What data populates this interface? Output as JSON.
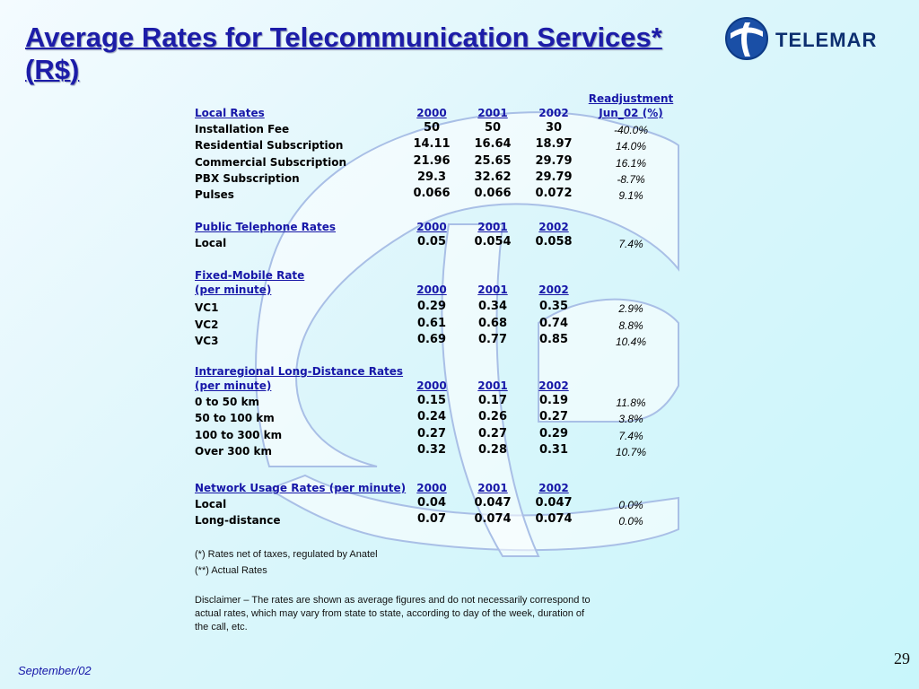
{
  "title": "Average Rates for Telecommunication Services* (R$)",
  "logo": {
    "text": "TELEMAR"
  },
  "readjustment_header": [
    "Readjustment",
    "Jun_02 (%)"
  ],
  "sections": [
    {
      "header": [
        "Local Rates"
      ],
      "years": [
        "2000",
        "2001",
        "2002"
      ],
      "years_underlined": [
        true,
        true,
        false
      ],
      "rows": [
        {
          "label": "Installation Fee",
          "values": [
            "50",
            "50",
            "30"
          ],
          "pct": "-40.0%"
        },
        {
          "label": "Residential Subscription",
          "values": [
            "14.11",
            "16.64",
            "18.97"
          ],
          "pct": "14.0%"
        },
        {
          "label": "Commercial Subscription",
          "values": [
            "21.96",
            "25.65",
            "29.79"
          ],
          "pct": "16.1%"
        },
        {
          "label": "PBX Subscription",
          "values": [
            "29.3",
            "32.62",
            "29.79"
          ],
          "pct": "-8.7%"
        },
        {
          "label": "Pulses",
          "values": [
            "0.066",
            "0.066",
            "0.072"
          ],
          "pct": "9.1%"
        }
      ]
    },
    {
      "header": [
        "Public Telephone Rates"
      ],
      "years": [
        "2000",
        "2001",
        "2002"
      ],
      "years_underlined": [
        true,
        true,
        true
      ],
      "rows": [
        {
          "label": "Local",
          "values": [
            "0.05",
            "0.054",
            "0.058"
          ],
          "pct": "7.4%"
        }
      ]
    },
    {
      "header": [
        "Fixed-Mobile Rate",
        "(per minute)"
      ],
      "years": [
        "2000",
        "2001",
        "2002"
      ],
      "years_underlined": [
        true,
        true,
        true
      ],
      "rows": [
        {
          "label": "VC1",
          "values": [
            "0.29",
            "0.34",
            "0.35"
          ],
          "pct": "2.9%"
        },
        {
          "label": "VC2",
          "values": [
            "0.61",
            "0.68",
            "0.74"
          ],
          "pct": "8.8%"
        },
        {
          "label": "VC3",
          "values": [
            "0.69",
            "0.77",
            "0.85"
          ],
          "pct": "10.4%"
        }
      ]
    },
    {
      "header": [
        "Intraregional Long-Distance Rates",
        "(per minute)"
      ],
      "years": [
        "2000",
        "2001",
        "2002"
      ],
      "years_underlined": [
        true,
        true,
        true
      ],
      "rows": [
        {
          "label": "0 to 50 km",
          "values": [
            "0.15",
            "0.17",
            "0.19"
          ],
          "pct": "11.8%"
        },
        {
          "label": "50 to 100 km",
          "values": [
            "0.24",
            "0.26",
            "0.27"
          ],
          "pct": "3.8%"
        },
        {
          "label": "100 to 300 km",
          "values": [
            "0.27",
            "0.27",
            "0.29"
          ],
          "pct": "7.4%"
        },
        {
          "label": "Over 300 km",
          "values": [
            "0.32",
            "0.28",
            "0.31"
          ],
          "pct": "10.7%"
        }
      ]
    },
    {
      "header": [
        "Network Usage Rates (per minute)"
      ],
      "years": [
        "2000",
        "2001",
        "2002"
      ],
      "years_underlined": [
        true,
        true,
        true
      ],
      "rows": [
        {
          "label": "Local",
          "values": [
            "0.04",
            "0.047",
            "0.047"
          ],
          "pct": "0.0%"
        },
        {
          "label": "Long-distance",
          "values": [
            "0.07",
            "0.074",
            "0.074"
          ],
          "pct": "0.0%"
        }
      ]
    }
  ],
  "notes": [
    "(*) Rates net of taxes, regulated by Anatel",
    "(**) Actual Rates"
  ],
  "disclaimer": "Disclaimer – The rates are shown as average figures and do not necessarily correspond to actual rates, which may vary from state to state, according to day of the week, duration of the call, etc.",
  "page_number": "29",
  "footer_date": "September/02",
  "colors": {
    "title": "#1c1ca8",
    "accent": "#1717a8",
    "background": "#c8f6fb"
  }
}
